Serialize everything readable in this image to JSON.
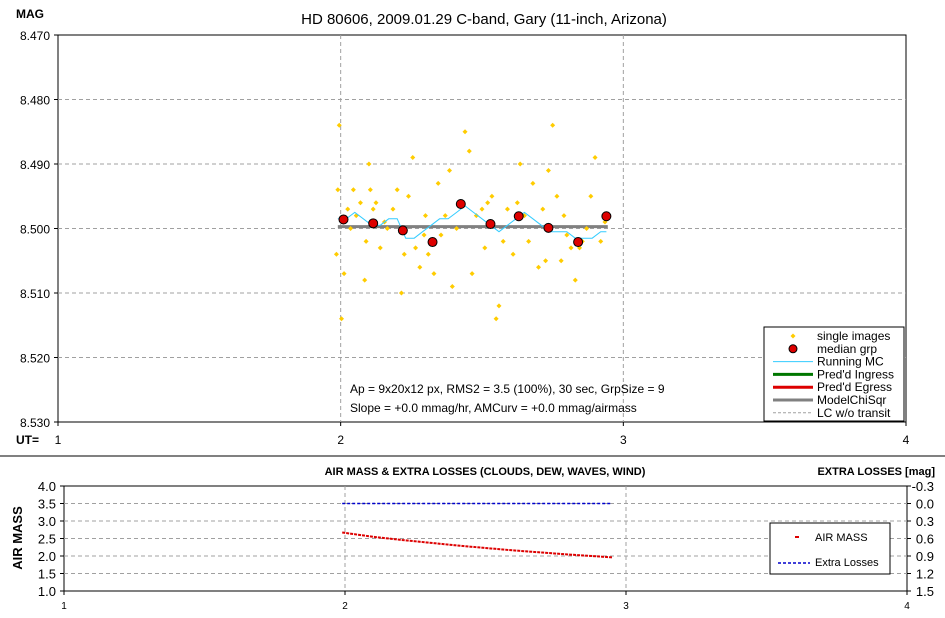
{
  "chart_data": [
    {
      "type": "scatter",
      "title": "HD 80606, 2009.01.29 C-band, Gary (11-inch, Arizona)",
      "ylabel": "MAG",
      "xlabel": "UT=",
      "xlim": [
        1,
        4
      ],
      "ylim": [
        8.53,
        8.47
      ],
      "y_inverted": true,
      "grid": true,
      "x_ticks": [
        "1",
        "2",
        "3",
        "4"
      ],
      "y_ticks": [
        "8.470",
        "8.480",
        "8.490",
        "8.500",
        "8.510",
        "8.520",
        "8.530"
      ],
      "legend_position": "bottom-right",
      "legend": [
        "single images",
        "median grp",
        "Running MC",
        "Pred'd Ingress",
        "Pred'd Egress",
        "ModelChiSqr",
        "LC w/o transit"
      ],
      "annotation_line1": "Ap = 9x20x12 px, RMS2 = 3.5 (100%), 30 sec, GrpSize = 9",
      "annotation_line2": "Slope = +0.0 mmag/hr, AMCurv = +0.0 mmag/airmass",
      "series": [
        {
          "name": "single images",
          "color": "#ffcc00",
          "x": [
            1.985,
            1.99,
            1.995,
            2.003,
            2.012,
            2.025,
            2.035,
            2.045,
            2.055,
            2.07,
            2.085,
            2.09,
            2.1,
            2.105,
            2.115,
            2.125,
            2.14,
            2.155,
            2.165,
            2.185,
            2.2,
            2.215,
            2.225,
            2.24,
            2.255,
            2.265,
            2.28,
            2.295,
            2.3,
            2.31,
            2.33,
            2.345,
            2.355,
            2.37,
            2.385,
            2.395,
            2.41,
            2.425,
            2.44,
            2.455,
            2.465,
            2.48,
            2.5,
            2.51,
            2.52,
            2.535,
            2.55,
            2.56,
            2.575,
            2.59,
            2.61,
            2.625,
            2.635,
            2.65,
            2.665,
            2.68,
            2.7,
            2.715,
            2.725,
            2.735,
            2.75,
            2.765,
            2.78,
            2.79,
            2.8,
            2.815,
            2.83,
            2.845,
            2.855,
            2.87,
            2.885,
            2.9,
            2.92,
            2.935
          ],
          "values": [
            8.504,
            8.494,
            8.484,
            8.514,
            8.507,
            8.497,
            8.5,
            8.494,
            8.498,
            8.496,
            8.508,
            8.502,
            8.49,
            8.494,
            8.497,
            8.496,
            8.503,
            8.499,
            8.5,
            8.497,
            8.494,
            8.51,
            8.504,
            8.495,
            8.489,
            8.503,
            8.506,
            8.501,
            8.498,
            8.504,
            8.507,
            8.493,
            8.501,
            8.498,
            8.491,
            8.509,
            8.5,
            8.496,
            8.485,
            8.488,
            8.507,
            8.498,
            8.497,
            8.503,
            8.496,
            8.495,
            8.514,
            8.512,
            8.502,
            8.497,
            8.504,
            8.496,
            8.49,
            8.498,
            8.502,
            8.493,
            8.506,
            8.497,
            8.505,
            8.491,
            8.484,
            8.495,
            8.505,
            8.498,
            8.501,
            8.503,
            8.508,
            8.503,
            8.502,
            8.5,
            8.495,
            8.489,
            8.502,
            8.499
          ]
        },
        {
          "name": "median grp",
          "color": "#dd0000",
          "x": [
            2.01,
            2.115,
            2.22,
            2.325,
            2.425,
            2.53,
            2.63,
            2.735,
            2.84,
            2.94
          ],
          "values": [
            8.4986,
            8.4992,
            8.5003,
            8.5021,
            8.4962,
            8.4993,
            8.4981,
            8.4999,
            8.5021,
            8.4981
          ]
        },
        {
          "name": "Running MC",
          "color": "#33ccff",
          "x": [
            1.99,
            2.02,
            2.05,
            2.08,
            2.11,
            2.14,
            2.17,
            2.2,
            2.23,
            2.26,
            2.29,
            2.32,
            2.35,
            2.38,
            2.41,
            2.44,
            2.47,
            2.5,
            2.53,
            2.56,
            2.59,
            2.62,
            2.65,
            2.68,
            2.71,
            2.74,
            2.77,
            2.8,
            2.83,
            2.86,
            2.89,
            2.92,
            2.94
          ],
          "values": [
            8.4985,
            8.4985,
            8.4975,
            8.4985,
            8.4995,
            8.4995,
            8.4985,
            8.4985,
            8.5015,
            8.5015,
            8.5005,
            8.4995,
            8.4985,
            8.4985,
            8.4975,
            8.4965,
            8.4975,
            8.4985,
            8.4995,
            8.5005,
            8.4995,
            8.4985,
            8.4975,
            8.4985,
            8.4995,
            8.5005,
            8.5005,
            8.5005,
            8.5015,
            8.5015,
            8.5015,
            8.5005,
            8.5005
          ]
        },
        {
          "name": "ModelChiSqr",
          "color": "#808080",
          "x": [
            1.99,
            2.945
          ],
          "values": [
            8.4997,
            8.4997
          ]
        }
      ]
    },
    {
      "type": "line",
      "title": "AIR MASS & EXTRA LOSSES (CLOUDS, DEW, WAVES, WIND)",
      "ylabel": "AIR MASS",
      "y2label": "EXTRA LOSSES [mag]",
      "xlim": [
        1,
        4
      ],
      "ylim": [
        1.0,
        4.0
      ],
      "y2lim": [
        1.5,
        -0.3
      ],
      "grid": true,
      "x_ticks": [
        "1",
        "2",
        "3",
        "4"
      ],
      "y_ticks": [
        "1.0",
        "1.5",
        "2.0",
        "2.5",
        "3.0",
        "3.5",
        "4.0"
      ],
      "y2_ticks": [
        "1.5",
        "1.2",
        "0.9",
        "0.6",
        "0.3",
        "0.0",
        "-0.3"
      ],
      "legend_position": "right",
      "series": [
        {
          "name": "AIR MASS",
          "color": "#dd0000",
          "x": [
            1.99,
            2.1,
            2.2,
            2.3,
            2.4,
            2.5,
            2.6,
            2.7,
            2.8,
            2.9,
            2.95
          ],
          "values": [
            2.67,
            2.55,
            2.46,
            2.38,
            2.3,
            2.23,
            2.16,
            2.1,
            2.04,
            1.99,
            1.96
          ]
        },
        {
          "name": "Extra Losses",
          "color": "#0000cc",
          "axis": "right",
          "x": [
            1.99,
            2.95
          ],
          "values": [
            0.0,
            0.0
          ]
        }
      ]
    }
  ]
}
